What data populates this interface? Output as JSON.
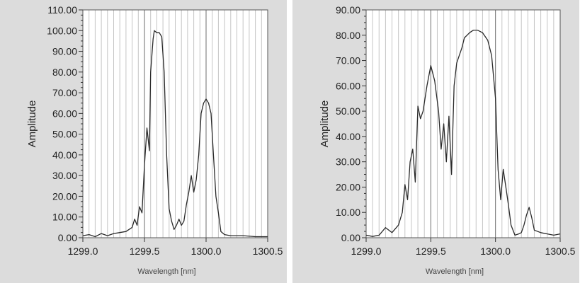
{
  "chart_data": [
    {
      "type": "line",
      "xlabel": "Wavelength [nm]",
      "ylabel": "Amplitude",
      "xlim": [
        1299.0,
        1300.5
      ],
      "ylim": [
        0,
        110
      ],
      "x_ticks": [
        "1299.0",
        "1299.5",
        "1300.0",
        "1300.5"
      ],
      "y_ticks": [
        "0.00",
        "10.00",
        "20.00",
        "30.00",
        "40.00",
        "50.00",
        "60.00",
        "70.00",
        "80.00",
        "90.00",
        "100.00",
        "110.00"
      ],
      "grid": true,
      "line_color": "#2a2a2a",
      "series": [
        {
          "x": [
            1299.0,
            1299.05,
            1299.1,
            1299.15,
            1299.2,
            1299.25,
            1299.3,
            1299.35,
            1299.4,
            1299.42,
            1299.44,
            1299.46,
            1299.48,
            1299.5,
            1299.52,
            1299.54,
            1299.55,
            1299.57,
            1299.58,
            1299.6,
            1299.62,
            1299.64,
            1299.66,
            1299.68,
            1299.7,
            1299.72,
            1299.74,
            1299.76,
            1299.78,
            1299.8,
            1299.82,
            1299.84,
            1299.86,
            1299.88,
            1299.9,
            1299.92,
            1299.94,
            1299.96,
            1299.98,
            1300.0,
            1300.02,
            1300.04,
            1300.06,
            1300.08,
            1300.1,
            1300.12,
            1300.15,
            1300.2,
            1300.3,
            1300.4,
            1300.5
          ],
          "values": [
            1,
            1.5,
            0.5,
            2,
            1,
            2,
            2.5,
            3,
            5,
            9,
            6,
            15,
            12,
            35,
            53,
            42,
            80,
            96,
            100,
            99,
            99,
            97,
            80,
            40,
            14,
            8,
            4,
            6,
            9,
            6,
            8,
            16,
            22,
            30,
            22,
            28,
            40,
            60,
            65,
            67,
            65,
            60,
            40,
            20,
            12,
            3,
            1.5,
            1,
            1,
            0.5,
            0.5
          ]
        }
      ]
    },
    {
      "type": "line",
      "xlabel": "Wavelength [nm]",
      "ylabel": "Amplitude",
      "xlim": [
        1299.0,
        1300.5
      ],
      "ylim": [
        0,
        90
      ],
      "x_ticks": [
        "1299.0",
        "1299.5",
        "1300.0",
        "1300.5"
      ],
      "y_ticks": [
        "0.00",
        "10.00",
        "20.00",
        "30.00",
        "40.00",
        "50.00",
        "60.00",
        "70.00",
        "80.00",
        "90.00"
      ],
      "grid": true,
      "line_color": "#2a2a2a",
      "series": [
        {
          "x": [
            1299.0,
            1299.05,
            1299.1,
            1299.15,
            1299.2,
            1299.25,
            1299.28,
            1299.3,
            1299.32,
            1299.34,
            1299.36,
            1299.38,
            1299.4,
            1299.42,
            1299.44,
            1299.47,
            1299.5,
            1299.53,
            1299.56,
            1299.58,
            1299.6,
            1299.62,
            1299.64,
            1299.66,
            1299.68,
            1299.7,
            1299.72,
            1299.74,
            1299.76,
            1299.78,
            1299.8,
            1299.83,
            1299.86,
            1299.9,
            1299.94,
            1299.97,
            1300.0,
            1300.02,
            1300.04,
            1300.06,
            1300.08,
            1300.1,
            1300.12,
            1300.15,
            1300.18,
            1300.2,
            1300.22,
            1300.24,
            1300.26,
            1300.28,
            1300.3,
            1300.35,
            1300.4,
            1300.45,
            1300.5
          ],
          "values": [
            1,
            0.5,
            1,
            4,
            2,
            5,
            10,
            21,
            15,
            30,
            35,
            22,
            52,
            47,
            50,
            60,
            68,
            62,
            50,
            35,
            45,
            30,
            48,
            25,
            60,
            69,
            72,
            75,
            79,
            80,
            81,
            82,
            82,
            81,
            78,
            72,
            55,
            27,
            15,
            27,
            20,
            13,
            5,
            1,
            1.5,
            2,
            5,
            9,
            12,
            8,
            3,
            2,
            1.5,
            1,
            1.5
          ]
        }
      ]
    }
  ]
}
